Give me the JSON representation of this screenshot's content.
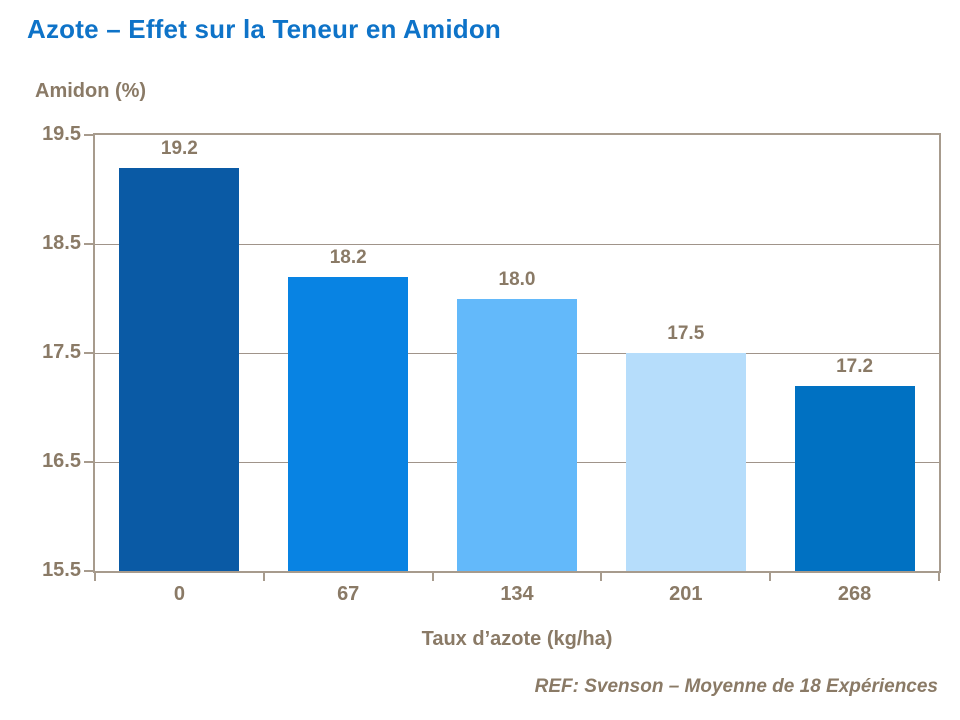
{
  "slide_title": "Azote – Effet sur la Teneur en Amidon",
  "footer_ref": "REF: Svenson – Moyenne de 18 Expériences",
  "colors": {
    "title": "#0E73C8",
    "text": "#8A7A66",
    "axis": "#A79B8D",
    "grid": "#A0948A",
    "background": "#FFFFFF"
  },
  "chart_data": {
    "type": "bar",
    "title": "Azote – Effet sur la Teneur en Amidon",
    "categories": [
      "0",
      "67",
      "134",
      "201",
      "268"
    ],
    "values": [
      19.2,
      18.2,
      18.0,
      17.5,
      17.2
    ],
    "data_labels": [
      "19.2",
      "18.2",
      "18.0",
      "17.5",
      "17.2"
    ],
    "bar_colors": [
      "#0A5AA5",
      "#0883E3",
      "#63B9FA",
      "#B6DDFB",
      "#0071C2"
    ],
    "xlabel": "Taux d’azote (kg/ha)",
    "ylabel": "Amidon (%)",
    "ylim": [
      15.5,
      19.5
    ],
    "yticks": [
      19.5,
      18.5,
      17.5,
      16.5,
      15.5
    ],
    "ytick_labels": [
      "19.5",
      "18.5",
      "17.5",
      "16.5",
      "15.5"
    ],
    "grid": true,
    "legend_position": "none"
  }
}
